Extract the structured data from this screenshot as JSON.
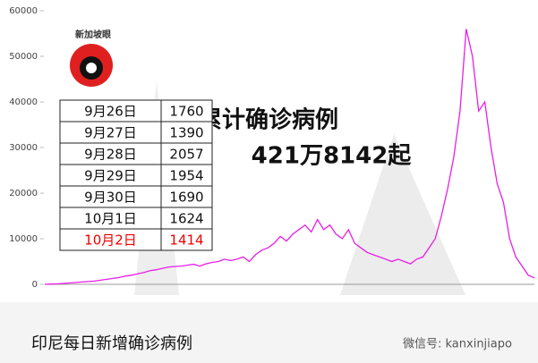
{
  "chart_data": {
    "type": "line",
    "color": "#e81ee8",
    "values": [
      0,
      50,
      100,
      200,
      300,
      400,
      500,
      600,
      700,
      900,
      1100,
      1300,
      1500,
      1800,
      2000,
      2300,
      2600,
      3000,
      3200,
      3500,
      3800,
      3900,
      4000,
      4200,
      4400,
      4000,
      4500,
      4800,
      5000,
      5500,
      5200,
      5500,
      6000,
      5000,
      6500,
      7500,
      8000,
      9000,
      10500,
      9500,
      11000,
      12000,
      13000,
      11500,
      14200,
      12000,
      13000,
      11000,
      10000,
      12000,
      9000,
      8000,
      7000,
      6500,
      6000,
      5500,
      5000,
      5500,
      5000,
      4500,
      5500,
      6000,
      8000,
      10000,
      15000,
      21000,
      28000,
      38000,
      56000,
      50000,
      38000,
      40000,
      30000,
      22000,
      18000,
      10000,
      6000,
      4000,
      2000,
      1414
    ],
    "ylim": [
      0,
      60000
    ],
    "yticks": [
      0,
      10000,
      20000,
      30000,
      40000,
      50000,
      60000
    ]
  },
  "logo": "新加坡眼",
  "table": {
    "rows": [
      [
        "9月26日",
        "1760"
      ],
      [
        "9月27日",
        "1390"
      ],
      [
        "9月28日",
        "2057"
      ],
      [
        "9月29日",
        "1954"
      ],
      [
        "9月30日",
        "1690"
      ],
      [
        "10月1日",
        "1624"
      ],
      [
        "10月2日",
        "1414"
      ]
    ]
  },
  "headline": [
    "累计确诊病例",
    "421万8142起"
  ],
  "caption": "印尼每日新增确诊病例",
  "watermark": "微信号: kanxinjiapo"
}
